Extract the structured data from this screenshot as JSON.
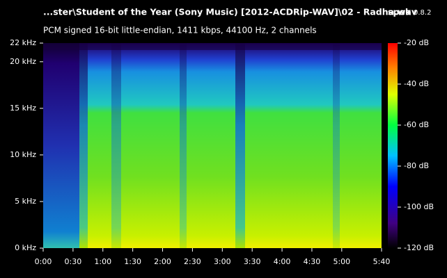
{
  "chart_data": {
    "type": "spectrogram",
    "title": "...ster\\Student of the Year (Sony Music) [2012-ACDRip-WAV]\\02 - Radha.wav",
    "app_name": "spek",
    "app_version": "0.8.2",
    "subtitle": "PCM signed 16-bit little-endian, 1411 kbps, 44100 Hz, 2 channels",
    "xlim": [
      0,
      340
    ],
    "xticks": [
      {
        "value": 0,
        "label": "0:00"
      },
      {
        "value": 30,
        "label": "0:30"
      },
      {
        "value": 60,
        "label": "1:00"
      },
      {
        "value": 90,
        "label": "1:30"
      },
      {
        "value": 120,
        "label": "2:00"
      },
      {
        "value": 150,
        "label": "2:30"
      },
      {
        "value": 180,
        "label": "3:00"
      },
      {
        "value": 210,
        "label": "3:30"
      },
      {
        "value": 240,
        "label": "4:00"
      },
      {
        "value": 270,
        "label": "4:30"
      },
      {
        "value": 300,
        "label": "5:00"
      },
      {
        "value": 340,
        "label": "5:40"
      }
    ],
    "ylim": [
      0,
      22
    ],
    "yticks": [
      {
        "value": 0,
        "label": "0 kHz"
      },
      {
        "value": 5,
        "label": "5 kHz"
      },
      {
        "value": 10,
        "label": "10 kHz"
      },
      {
        "value": 15,
        "label": "15 kHz"
      },
      {
        "value": 20,
        "label": "20 kHz"
      },
      {
        "value": 22,
        "label": "22 kHz"
      }
    ],
    "zlim": [
      -120,
      -20
    ],
    "zticks": [
      {
        "value": -20,
        "label": "-20 dB"
      },
      {
        "value": -40,
        "label": "-40 dB"
      },
      {
        "value": -60,
        "label": "-60 dB"
      },
      {
        "value": -80,
        "label": "-80 dB"
      },
      {
        "value": -100,
        "label": "-100 dB"
      },
      {
        "value": -120,
        "label": "-120 dB"
      }
    ]
  }
}
